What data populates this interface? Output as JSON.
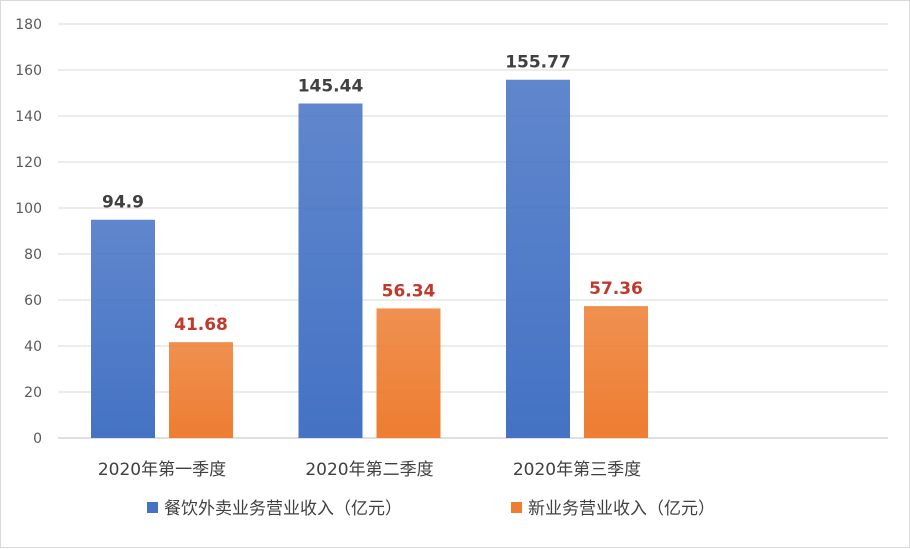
{
  "chart_data": {
    "type": "bar",
    "categories": [
      "2020年第一季度",
      "2020年第二季度",
      "2020年第三季度"
    ],
    "series": [
      {
        "name": "餐饮外卖业务营业收入（亿元）",
        "values": [
          94.9,
          145.44,
          155.77
        ],
        "labels": [
          "94.9",
          "145.44",
          "155.77"
        ],
        "color": "#4472c4",
        "label_color": "#404040"
      },
      {
        "name": "新业务营业收入（亿元）",
        "values": [
          41.68,
          56.34,
          57.36
        ],
        "labels": [
          "41.68",
          "56.34",
          "57.36"
        ],
        "color": "#ed7d31",
        "label_color": "#c0392b"
      }
    ],
    "ylim": [
      0,
      180
    ],
    "yticks": [
      "0",
      "20",
      "40",
      "60",
      "80",
      "100",
      "120",
      "140",
      "160",
      "180"
    ],
    "grid": true,
    "legend_position": "bottom",
    "title": "",
    "xlabel": "",
    "ylabel": ""
  }
}
